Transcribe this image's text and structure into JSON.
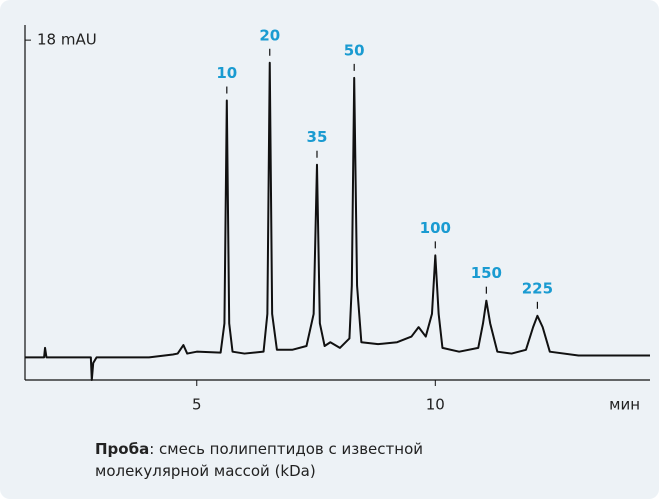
{
  "chart_data": {
    "type": "line",
    "x": [
      1.4,
      1.8,
      1.82,
      1.85,
      2.3,
      2.78,
      2.8,
      2.83,
      2.9,
      3.5,
      4.0,
      4.5,
      4.6,
      4.72,
      4.8,
      5.0,
      5.5,
      5.58,
      5.63,
      5.68,
      5.75,
      6.0,
      6.4,
      6.48,
      6.53,
      6.58,
      6.68,
      7.0,
      7.3,
      7.45,
      7.52,
      7.58,
      7.68,
      7.8,
      8.0,
      8.2,
      8.25,
      8.3,
      8.36,
      8.45,
      8.8,
      9.2,
      9.5,
      9.65,
      9.8,
      9.93,
      10.0,
      10.07,
      10.15,
      10.5,
      10.9,
      11.0,
      11.07,
      11.15,
      11.3,
      11.6,
      11.9,
      12.05,
      12.14,
      12.25,
      12.4,
      13.0,
      14.5
    ],
    "series": [
      {
        "color": "#111111",
        "values": [
          1.2,
          1.2,
          1.7,
          1.2,
          1.2,
          1.2,
          0.0,
          0.9,
          1.2,
          1.2,
          1.2,
          1.35,
          1.4,
          1.85,
          1.4,
          1.5,
          1.45,
          3.0,
          14.8,
          3.0,
          1.5,
          1.4,
          1.5,
          3.5,
          16.8,
          3.5,
          1.6,
          1.6,
          1.8,
          3.5,
          11.4,
          3.0,
          1.8,
          2.0,
          1.7,
          2.2,
          5.0,
          16.0,
          5.0,
          2.0,
          1.9,
          2.0,
          2.3,
          2.8,
          2.3,
          3.5,
          6.6,
          3.5,
          1.7,
          1.5,
          1.7,
          3.0,
          4.2,
          3.0,
          1.5,
          1.4,
          1.6,
          2.8,
          3.4,
          2.8,
          1.5,
          1.3,
          1.3
        ]
      }
    ],
    "xlim": [
      1.4,
      14.5
    ],
    "xticks": [
      5,
      10
    ],
    "x_label": "мин",
    "ylim": [
      0,
      18.8
    ],
    "yticks": [
      {
        "value": 18,
        "label": "18 mAU"
      }
    ],
    "peak_labels": [
      {
        "label": "10",
        "x": 5.63
      },
      {
        "label": "20",
        "x": 6.53
      },
      {
        "label": "35",
        "x": 7.52
      },
      {
        "label": "50",
        "x": 8.3
      },
      {
        "label": "100",
        "x": 10.0
      },
      {
        "label": "150",
        "x": 11.07
      },
      {
        "label": "225",
        "x": 12.14
      }
    ],
    "peak_label_color": "#1a9bd1"
  },
  "note": {
    "label": "Проба",
    "lines": [
      ": смесь полипептидов с известной",
      "молекулярной массой (kDa)"
    ]
  }
}
